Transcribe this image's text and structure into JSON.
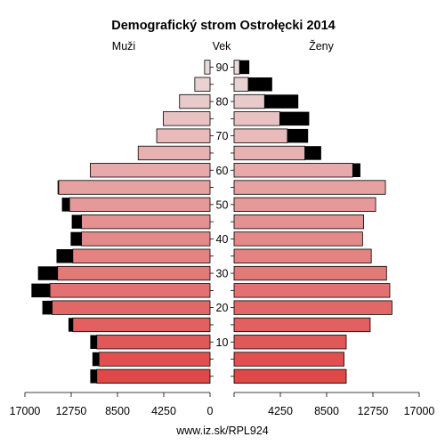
{
  "chart_data": {
    "type": "bar",
    "subtype": "population-pyramid",
    "title": "Demografický strom Ostrołęcki 2014",
    "left_label": "Muži",
    "center_label": "Vek",
    "right_label": "Ženy",
    "source": "www.iz.sk/RPL924",
    "age_groups": [
      "0-4",
      "5-9",
      "10-14",
      "15-19",
      "20-24",
      "25-29",
      "30-34",
      "35-39",
      "40-44",
      "45-49",
      "50-54",
      "55-59",
      "60-64",
      "65-69",
      "70-74",
      "75-79",
      "80-84",
      "85-89",
      "90+"
    ],
    "age_tick_labels": [
      "10",
      "20",
      "30",
      "40",
      "50",
      "60",
      "70",
      "80",
      "90"
    ],
    "x_tick_values": [
      17000,
      12750,
      8500,
      4250,
      0,
      4250,
      8500,
      12750,
      17000
    ],
    "x_tick_labels": [
      "17000",
      "12750",
      "8500",
      "4250",
      "0",
      "4250",
      "8500",
      "12750",
      "17000"
    ],
    "xlim": [
      0,
      17000
    ],
    "series": [
      {
        "name": "Muži",
        "values": [
          10400,
          10200,
          10400,
          12600,
          14500,
          14700,
          14000,
          12600,
          11800,
          11800,
          12900,
          13900,
          11000,
          6600,
          4900,
          4300,
          2800,
          1400,
          500
        ],
        "excess": [
          600,
          600,
          600,
          400,
          900,
          1700,
          1800,
          1500,
          1000,
          900,
          700,
          100,
          0,
          0,
          0,
          0,
          0,
          0,
          0
        ]
      },
      {
        "name": "Ženy",
        "values": [
          10300,
          10100,
          10300,
          12500,
          14500,
          14300,
          14000,
          12600,
          11800,
          11900,
          13000,
          13900,
          10900,
          6500,
          4900,
          4200,
          2800,
          1300,
          500
        ],
        "excess": [
          0,
          0,
          0,
          0,
          0,
          0,
          0,
          0,
          0,
          0,
          0,
          0,
          700,
          1500,
          1900,
          2700,
          3100,
          2200,
          900
        ]
      }
    ],
    "colors": {
      "excess": "#000000",
      "outline": "#000000",
      "bottom_fill": "#e04848",
      "top_fill": "#eadada"
    }
  }
}
